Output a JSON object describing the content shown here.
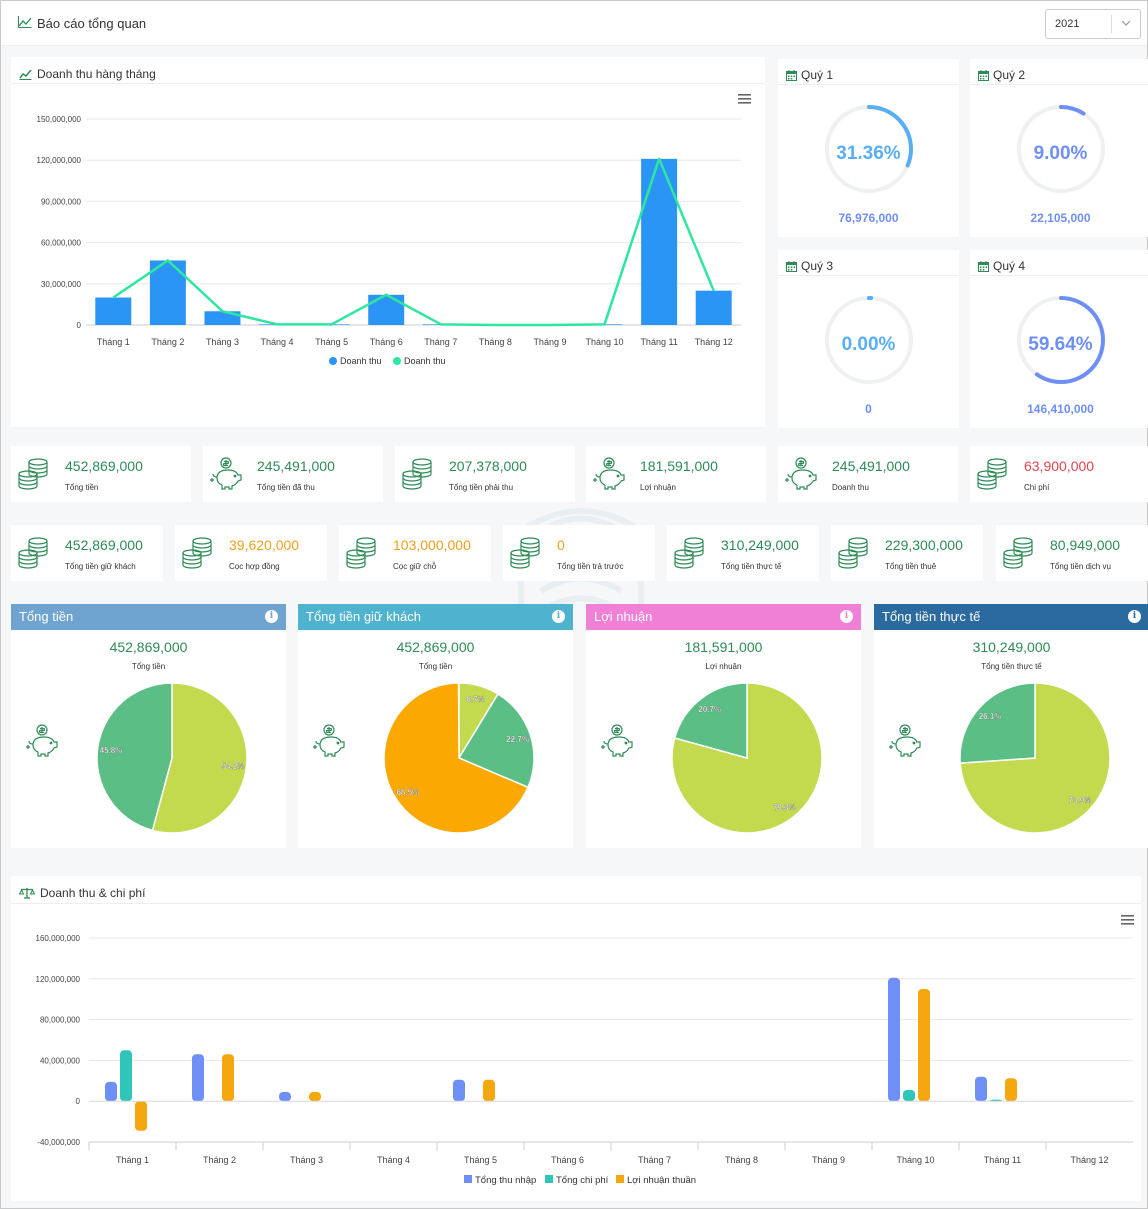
{
  "header": {
    "title": "Báo cáo tổng quan",
    "year": "2021"
  },
  "revenue_panel": {
    "title": "Doanh thu hàng tháng"
  },
  "quarters": [
    {
      "label": "Quý 1",
      "percent": "31.36%",
      "fraction": 0.3136,
      "amount": "76,976,000",
      "color": "#5aaef5"
    },
    {
      "label": "Quý 2",
      "percent": "9.00%",
      "fraction": 0.09,
      "amount": "22,105,000",
      "color": "#6e8ff5"
    },
    {
      "label": "Quý 3",
      "percent": "0.00%",
      "fraction": 0.0,
      "amount": "0",
      "color": "#5aaef5"
    },
    {
      "label": "Quý 4",
      "percent": "59.64%",
      "fraction": 0.5964,
      "amount": "146,410,000",
      "color": "#6e8ff5"
    }
  ],
  "cards_row1": [
    {
      "value": "452,869,000",
      "label": "Tổng tiền",
      "icon": "coins-icon",
      "color": "#2e8b57"
    },
    {
      "value": "245,491,000",
      "label": "Tổng tiền đã thu",
      "icon": "piggy-bank-icon",
      "color": "#2e8b57"
    },
    {
      "value": "207,378,000",
      "label": "Tổng tiền phải thu",
      "icon": "coins-icon",
      "color": "#2e8b57"
    },
    {
      "value": "181,591,000",
      "label": "Lợi nhuận",
      "icon": "piggy-bank-icon",
      "color": "#2e8b57"
    },
    {
      "value": "245,491,000",
      "label": "Doanh thu",
      "icon": "piggy-bank-icon",
      "color": "#2e8b57"
    },
    {
      "value": "63,900,000",
      "label": "Chi phí",
      "icon": "coins-icon",
      "color": "#e0454f"
    }
  ],
  "cards_row2": [
    {
      "value": "452,869,000",
      "label": "Tổng tiền giữ khách",
      "icon": "coins-icon",
      "color": "#2e8b57"
    },
    {
      "value": "39,620,000",
      "label": "Cọc hợp đồng",
      "icon": "coins-icon",
      "color": "#f0a020"
    },
    {
      "value": "103,000,000",
      "label": "Cọc giữ chỗ",
      "icon": "coins-icon",
      "color": "#f0a020"
    },
    {
      "value": "0",
      "label": "Tổng tiền trả trước",
      "icon": "coins-icon",
      "color": "#f0a020"
    },
    {
      "value": "310,249,000",
      "label": "Tổng tiền thực tế",
      "icon": "coins-icon",
      "color": "#2e8b57"
    },
    {
      "value": "229,300,000",
      "label": "Tổng tiền thuê",
      "icon": "coins-icon",
      "color": "#2e8b57"
    },
    {
      "value": "80,949,000",
      "label": "Tổng tiền dịch vụ",
      "icon": "coins-icon",
      "color": "#2e8b57"
    }
  ],
  "pies": [
    {
      "title": "Tổng tiền",
      "header_color": "#6fa3d0",
      "value": "452,869,000",
      "sub": "Tổng tiền",
      "slices": [
        {
          "pct": 54.2,
          "label": "54.2%",
          "color": "#c3d94e"
        },
        {
          "pct": 45.8,
          "label": "45.8%",
          "color": "#5bbf85"
        }
      ]
    },
    {
      "title": "Tổng tiền giữ khách",
      "header_color": "#4fb3cf",
      "value": "452,869,000",
      "sub": "Tổng tiền",
      "slices": [
        {
          "pct": 8.7,
          "label": "8.7%",
          "color": "#c3d94e"
        },
        {
          "pct": 22.7,
          "label": "22.7%",
          "color": "#5bbf85"
        },
        {
          "pct": 68.5,
          "label": "68.5%",
          "color": "#fba900"
        }
      ]
    },
    {
      "title": "Lợi nhuận",
      "header_color": "#f07fd6",
      "value": "181,591,000",
      "sub": "Lợi nhuận",
      "slices": [
        {
          "pct": 79.3,
          "label": "79.3%",
          "color": "#c3d94e"
        },
        {
          "pct": 20.7,
          "label": "20.7%",
          "color": "#5bbf85"
        }
      ]
    },
    {
      "title": "Tổng tiền thực tế",
      "header_color": "#2a6a9e",
      "value": "310,249,000",
      "sub": "Tổng tiền thực tế",
      "slices": [
        {
          "pct": 73.9,
          "label": "73.9%",
          "color": "#c3d94e"
        },
        {
          "pct": 26.1,
          "label": "26.1%",
          "color": "#5bbf85"
        }
      ]
    }
  ],
  "income_panel": {
    "title": "Doanh thu & chi phí"
  },
  "chart_data": [
    {
      "type": "bar",
      "title": "",
      "categories": [
        "Tháng 1",
        "Tháng 2",
        "Tháng 3",
        "Tháng 4",
        "Tháng 5",
        "Tháng 6",
        "Tháng 7",
        "Tháng 8",
        "Tháng 9",
        "Tháng 10",
        "Tháng 11",
        "Tháng 12"
      ],
      "series": [
        {
          "name": "Doanh thu",
          "kind": "bar",
          "color": "#2b95f5",
          "values": [
            20000000,
            47000000,
            10000000,
            500000,
            500000,
            22000000,
            500000,
            0,
            0,
            500000,
            121000000,
            25000000
          ]
        },
        {
          "name": "Doanh thu",
          "kind": "line",
          "color": "#2ee6a0",
          "values": [
            20000000,
            47000000,
            10000000,
            500000,
            500000,
            22000000,
            500000,
            0,
            0,
            500000,
            121000000,
            25000000
          ]
        }
      ],
      "yticks": [
        "0",
        "30,000,000",
        "60,000,000",
        "90,000,000",
        "120,000,000",
        "150,000,000"
      ],
      "ylim": [
        0,
        150000000
      ],
      "legend": "bottom"
    },
    {
      "type": "bar",
      "title": "",
      "categories": [
        "Tháng 1",
        "Tháng 2",
        "Tháng 3",
        "Tháng 4",
        "Tháng 5",
        "Tháng 6",
        "Tháng 7",
        "Tháng 8",
        "Tháng 9",
        "Tháng 10",
        "Tháng 11",
        "Tháng 12"
      ],
      "series": [
        {
          "name": "Tổng thu nhập",
          "color": "#6e8ff5",
          "values": [
            19000000,
            46000000,
            9000000,
            0,
            21000000,
            0,
            0,
            0,
            0,
            121000000,
            24000000,
            0
          ]
        },
        {
          "name": "Tổng chi phí",
          "color": "#2fc5b9",
          "values": [
            50000000,
            0,
            0,
            0,
            0,
            0,
            0,
            0,
            0,
            11000000,
            1500000,
            0
          ]
        },
        {
          "name": "Lợi nhuận thuần",
          "color": "#f5a70f",
          "values": [
            -29000000,
            46000000,
            9000000,
            0,
            21000000,
            0,
            0,
            0,
            0,
            110000000,
            22500000,
            0
          ]
        }
      ],
      "yticks": [
        "-40,000,000",
        "0",
        "40,000,000",
        "80,000,000",
        "120,000,000",
        "160,000,000"
      ],
      "ylim": [
        -40000000,
        160000000
      ],
      "legend": "bottom"
    }
  ]
}
